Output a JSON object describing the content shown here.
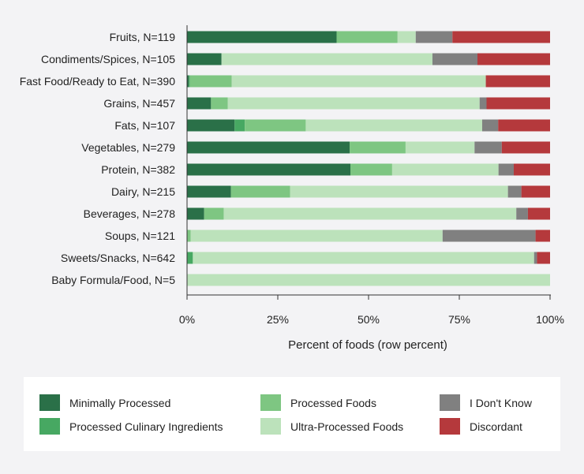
{
  "chart_data": {
    "type": "bar",
    "orientation": "horizontal",
    "stacked": true,
    "xlabel": "Percent of foods (row percent)",
    "xlim": [
      0,
      100
    ],
    "xticks": [
      {
        "value": 0,
        "label": "0%"
      },
      {
        "value": 25,
        "label": "25%"
      },
      {
        "value": 50,
        "label": "50%"
      },
      {
        "value": 75,
        "label": "75%"
      },
      {
        "value": 100,
        "label": "100%"
      }
    ],
    "categories": [
      "Fruits, N=119",
      "Condiments/Spices, N=105",
      "Fast Food/Ready to Eat, N=390",
      "Grains, N=457",
      "Fats, N=107",
      "Vegetables, N=279",
      "Protein, N=382",
      "Dairy, N=215",
      "Beverages, N=278",
      "Soups, N=121",
      "Sweets/Snacks, N=642",
      "Baby Formula/Food, N=5"
    ],
    "series": [
      {
        "name": "Minimally Processed",
        "color": "#2a7048",
        "values": [
          41.2,
          9.5,
          0.5,
          6.6,
          13.1,
          44.8,
          45.0,
          12.1,
          4.7,
          0.0,
          0.0,
          0.0
        ]
      },
      {
        "name": "Processed Culinary Ingredients",
        "color": "#47a862",
        "values": [
          0.0,
          0.0,
          0.3,
          0.0,
          2.8,
          0.0,
          0.0,
          0.0,
          0.0,
          0.0,
          1.6,
          0.0
        ]
      },
      {
        "name": "Processed Foods",
        "color": "#7ec682",
        "values": [
          16.8,
          0.0,
          11.5,
          4.6,
          16.8,
          15.4,
          11.5,
          16.3,
          5.4,
          1.0,
          0.0,
          0.0
        ]
      },
      {
        "name": "Ultra-Processed Foods",
        "color": "#bce2bb",
        "values": [
          5.0,
          58.1,
          70.0,
          69.4,
          48.6,
          19.0,
          29.3,
          60.0,
          80.6,
          69.4,
          94.0,
          100.0
        ]
      },
      {
        "name": "I Don't Know",
        "color": "#808080",
        "values": [
          10.1,
          12.4,
          0.0,
          1.9,
          4.4,
          7.5,
          4.2,
          3.7,
          3.2,
          25.6,
          0.8,
          0.0
        ]
      },
      {
        "name": "Discordant",
        "color": "#b5393c",
        "values": [
          26.9,
          20.0,
          17.7,
          17.5,
          14.3,
          13.3,
          10.0,
          7.9,
          6.1,
          4.0,
          3.6,
          0.0
        ]
      }
    ]
  }
}
